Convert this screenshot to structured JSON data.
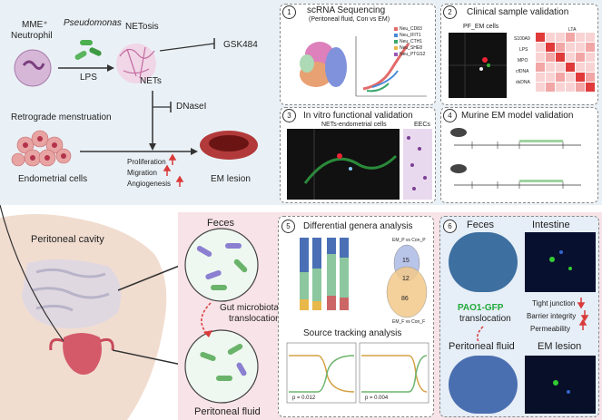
{
  "colors": {
    "top_bg": "#eaf1f6",
    "pink_bg": "#f8e3e8",
    "blue_bg": "#e6eef7",
    "arrow": "#333333",
    "red": "#d93b3b",
    "green_text": "#1faa3a"
  },
  "top_left": {
    "mme_line1": "MME⁺",
    "mme_line2": "Neutrophil",
    "pseudomonas": "Pseudomonas",
    "lps": "LPS",
    "netosis": "NETosis",
    "gsk": "GSK484",
    "nets": "NETs",
    "dnasei": "DNaseI",
    "retro": "Retrograde menstruation",
    "endo": "Endometrial cells",
    "prolif": "Proliferation",
    "migration": "Migration",
    "angio": "Angiogenesis",
    "em_lesion": "EM lesion"
  },
  "panels": {
    "p1": {
      "num": "1",
      "title": "scRNA Sequencing",
      "subtitle": "(Peritoneal fluid, Con vs EM)",
      "legend": [
        "Neu_CD83",
        "Neu_IFIT1",
        "Neu_CTH1",
        "Neu_SHE8",
        "Neu_PTGS2"
      ]
    },
    "p2": {
      "num": "2",
      "title": "Clinical sample validation",
      "sub": "PF_EM cells",
      "heat_rows": [
        "LTA",
        "S100A9",
        "LPS",
        "MPO",
        "cfDNA",
        "dsDNA"
      ]
    },
    "p3": {
      "num": "3",
      "title": "In vitro functional validation",
      "sub": "NETs-endometrial cells",
      "side": "EECs"
    },
    "p4": {
      "num": "4",
      "title": "Murine EM model validation"
    },
    "p5": {
      "num": "5",
      "title": "Differential genera analysis",
      "venn": [
        "15",
        "12",
        "86"
      ],
      "venn_top": "EM_P vs Con_P",
      "venn_bottom": "EM_F vs Con_F",
      "track_title": "Source tracking analysis",
      "p1": "p = 0.012",
      "p2": "p = 0.004"
    },
    "p6": {
      "num": "6",
      "feces": "Feces",
      "intestine": "Intestine",
      "pao": "PAO1-GFP",
      "translocation": "translocation",
      "tight": "Tight junction",
      "barrier": "Barrier integrity",
      "perm": "Permeability",
      "peritoneal_fluid": "Peritoneal fluid",
      "em_lesion": "EM lesion"
    }
  },
  "bottom_left": {
    "cavity": "Peritoneal cavity",
    "feces": "Feces",
    "gut1": "Gut microbiota",
    "gut2": "translocation",
    "pf": "Peritoneal fluid"
  }
}
